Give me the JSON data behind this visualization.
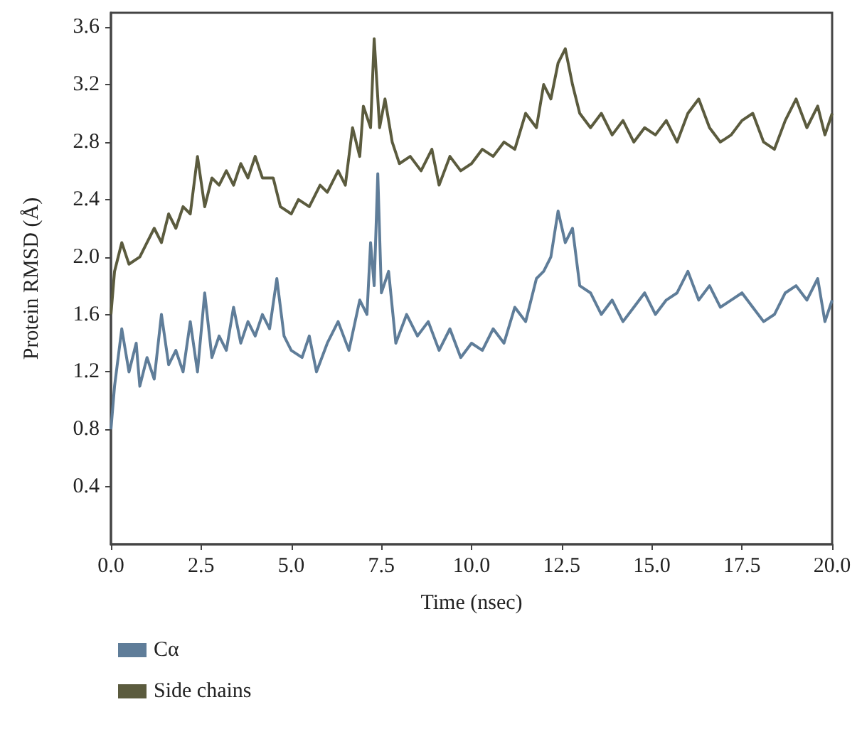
{
  "chart_data": {
    "type": "line",
    "xlabel": "Time (nsec)",
    "ylabel": "Protein RMSD (Å)",
    "xlim": [
      0,
      20
    ],
    "xticks": [
      {
        "value": 0,
        "label": "0.0"
      },
      2.5,
      {
        "value": 5,
        "label": "5.0"
      },
      7.5,
      {
        "value": 10,
        "label": "10.0"
      },
      12.5,
      {
        "value": 15,
        "label": "15.0"
      },
      17.5,
      {
        "value": 20,
        "label": "20.0"
      }
    ],
    "ylim": [
      0,
      3.7
    ],
    "yticks": [
      0.4,
      0.8,
      1.2,
      1.6,
      {
        "value": 2,
        "label": "2.0"
      },
      2.4,
      2.8,
      3.2,
      3.6
    ],
    "grid": false,
    "legend": "bottom left",
    "marker": "none",
    "line_style": "solid",
    "series": [
      {
        "name": "Cα",
        "color": "#5f7d99",
        "x": [
          0,
          0.1,
          0.3,
          0.5,
          0.7,
          0.8,
          1.0,
          1.2,
          1.4,
          1.6,
          1.8,
          2.0,
          2.2,
          2.4,
          2.6,
          2.8,
          3.0,
          3.2,
          3.4,
          3.6,
          3.8,
          4.0,
          4.2,
          4.4,
          4.6,
          4.8,
          5.0,
          5.3,
          5.5,
          5.7,
          6.0,
          6.3,
          6.6,
          6.9,
          7.1,
          7.2,
          7.3,
          7.4,
          7.5,
          7.7,
          7.9,
          8.2,
          8.5,
          8.8,
          9.1,
          9.4,
          9.7,
          10.0,
          10.3,
          10.6,
          10.9,
          11.2,
          11.5,
          11.8,
          12.0,
          12.2,
          12.4,
          12.6,
          12.8,
          13.0,
          13.3,
          13.6,
          13.9,
          14.2,
          14.5,
          14.8,
          15.1,
          15.4,
          15.7,
          16.0,
          16.3,
          16.6,
          16.9,
          17.2,
          17.5,
          17.8,
          18.1,
          18.4,
          18.7,
          19.0,
          19.3,
          19.6,
          19.8,
          20.0
        ],
        "values": [
          0.8,
          1.1,
          1.5,
          1.2,
          1.4,
          1.1,
          1.3,
          1.15,
          1.6,
          1.25,
          1.35,
          1.2,
          1.55,
          1.2,
          1.75,
          1.3,
          1.45,
          1.35,
          1.65,
          1.4,
          1.55,
          1.45,
          1.6,
          1.5,
          1.85,
          1.45,
          1.35,
          1.3,
          1.45,
          1.2,
          1.4,
          1.55,
          1.35,
          1.7,
          1.6,
          2.1,
          1.8,
          2.58,
          1.75,
          1.9,
          1.4,
          1.6,
          1.45,
          1.55,
          1.35,
          1.5,
          1.3,
          1.4,
          1.35,
          1.5,
          1.4,
          1.65,
          1.55,
          1.85,
          1.9,
          2.0,
          2.32,
          2.1,
          2.2,
          1.8,
          1.75,
          1.6,
          1.7,
          1.55,
          1.65,
          1.75,
          1.6,
          1.7,
          1.75,
          1.9,
          1.7,
          1.8,
          1.65,
          1.7,
          1.75,
          1.65,
          1.55,
          1.6,
          1.75,
          1.8,
          1.7,
          1.85,
          1.55,
          1.7
        ]
      },
      {
        "name": "Side chains",
        "color": "#5b5b3e",
        "x": [
          0,
          0.1,
          0.3,
          0.5,
          0.8,
          1.0,
          1.2,
          1.4,
          1.6,
          1.8,
          2.0,
          2.2,
          2.4,
          2.6,
          2.8,
          3.0,
          3.2,
          3.4,
          3.6,
          3.8,
          4.0,
          4.2,
          4.5,
          4.7,
          5.0,
          5.2,
          5.5,
          5.8,
          6.0,
          6.3,
          6.5,
          6.7,
          6.9,
          7.0,
          7.2,
          7.3,
          7.45,
          7.6,
          7.8,
          8.0,
          8.3,
          8.6,
          8.9,
          9.1,
          9.4,
          9.7,
          10.0,
          10.3,
          10.6,
          10.9,
          11.2,
          11.5,
          11.8,
          12.0,
          12.2,
          12.4,
          12.6,
          12.8,
          13.0,
          13.3,
          13.6,
          13.9,
          14.2,
          14.5,
          14.8,
          15.1,
          15.4,
          15.7,
          16.0,
          16.3,
          16.6,
          16.9,
          17.2,
          17.5,
          17.8,
          18.1,
          18.4,
          18.7,
          19.0,
          19.3,
          19.6,
          19.8,
          20.0
        ],
        "values": [
          1.6,
          1.9,
          2.1,
          1.95,
          2.0,
          2.1,
          2.2,
          2.1,
          2.3,
          2.2,
          2.35,
          2.3,
          2.7,
          2.35,
          2.55,
          2.5,
          2.6,
          2.5,
          2.65,
          2.55,
          2.7,
          2.55,
          2.55,
          2.35,
          2.3,
          2.4,
          2.35,
          2.5,
          2.45,
          2.6,
          2.5,
          2.9,
          2.7,
          3.05,
          2.9,
          3.52,
          2.9,
          3.1,
          2.8,
          2.65,
          2.7,
          2.6,
          2.75,
          2.5,
          2.7,
          2.6,
          2.65,
          2.75,
          2.7,
          2.8,
          2.75,
          3.0,
          2.9,
          3.2,
          3.1,
          3.35,
          3.45,
          3.2,
          3.0,
          2.9,
          3.0,
          2.85,
          2.95,
          2.8,
          2.9,
          2.85,
          2.95,
          2.8,
          3.0,
          3.1,
          2.9,
          2.8,
          2.85,
          2.95,
          3.0,
          2.8,
          2.75,
          2.95,
          3.1,
          2.9,
          3.05,
          2.85,
          3.0
        ]
      }
    ]
  }
}
